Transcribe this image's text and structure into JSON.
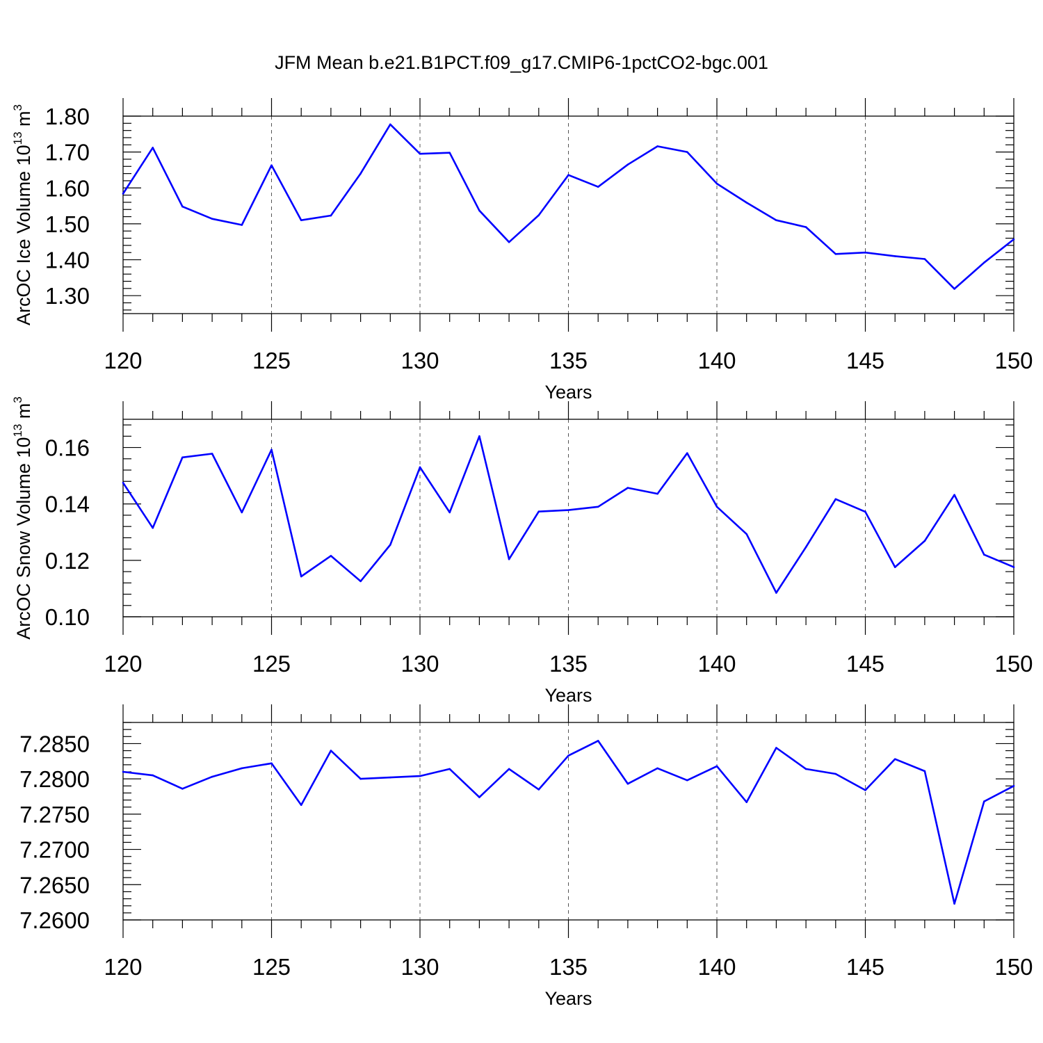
{
  "title": "JFM Mean b.e21.B1PCT.f09_g17.CMIP6-1pctCO2-bgc.001",
  "colors": {
    "line": "#0000ff",
    "axis": "#000000",
    "grid": "#555555"
  },
  "chart_data": [
    {
      "type": "line",
      "xlabel": "Years",
      "ylabel": {
        "text": "ArcOC Ice Volume 10",
        "sup1": "13",
        "mid": " m",
        "sup2": "3"
      },
      "xlim": [
        120,
        150
      ],
      "ylim": [
        1.25,
        1.8
      ],
      "grid": "vertical dashed at major x ticks",
      "x_ticks": [
        "120",
        "125",
        "130",
        "135",
        "140",
        "145",
        "150"
      ],
      "y_ticks": [
        {
          "value": 1.3,
          "label": "1.30"
        },
        {
          "value": 1.4,
          "label": "1.40"
        },
        {
          "value": 1.5,
          "label": "1.50"
        },
        {
          "value": 1.6,
          "label": "1.60"
        },
        {
          "value": 1.7,
          "label": "1.70"
        },
        {
          "value": 1.8,
          "label": "1.80"
        }
      ],
      "x": [
        120,
        121,
        122,
        123,
        124,
        125,
        126,
        127,
        128,
        129,
        130,
        131,
        132,
        133,
        134,
        135,
        136,
        137,
        138,
        139,
        140,
        141,
        142,
        143,
        144,
        145,
        146,
        147,
        148,
        149,
        150
      ],
      "y": [
        1.584,
        1.712,
        1.548,
        1.514,
        1.497,
        1.663,
        1.51,
        1.523,
        1.64,
        1.777,
        1.695,
        1.698,
        1.537,
        1.449,
        1.524,
        1.636,
        1.603,
        1.665,
        1.716,
        1.7,
        1.612,
        1.559,
        1.51,
        1.491,
        1.416,
        1.42,
        1.41,
        1.402,
        1.319,
        1.392,
        1.457
      ]
    },
    {
      "type": "line",
      "xlabel": "Years",
      "ylabel": {
        "text": "ArcOC Snow Volume 10",
        "sup1": "13",
        "mid": " m",
        "sup2": "3"
      },
      "xlim": [
        120,
        150
      ],
      "ylim": [
        0.1,
        0.17
      ],
      "grid": "vertical dashed at major x ticks",
      "x_ticks": [
        "120",
        "125",
        "130",
        "135",
        "140",
        "145",
        "150"
      ],
      "y_ticks": [
        {
          "value": 0.1,
          "label": "0.10"
        },
        {
          "value": 0.12,
          "label": "0.12"
        },
        {
          "value": 0.14,
          "label": "0.14"
        },
        {
          "value": 0.16,
          "label": "0.16"
        }
      ],
      "x": [
        120,
        121,
        122,
        123,
        124,
        125,
        126,
        127,
        128,
        129,
        130,
        131,
        132,
        133,
        134,
        135,
        136,
        137,
        138,
        139,
        140,
        141,
        142,
        143,
        144,
        145,
        146,
        147,
        148,
        149,
        150
      ],
      "y": [
        0.1475,
        0.1315,
        0.1565,
        0.1578,
        0.137,
        0.1592,
        0.1143,
        0.1216,
        0.1126,
        0.1255,
        0.153,
        0.137,
        0.164,
        0.1204,
        0.1373,
        0.1378,
        0.139,
        0.1457,
        0.1436,
        0.158,
        0.139,
        0.1293,
        0.1085,
        0.1247,
        0.1417,
        0.1372,
        0.1176,
        0.1269,
        0.1432,
        0.122,
        0.1176
      ]
    },
    {
      "type": "line",
      "xlabel": "Years",
      "ylabel": null,
      "xlim": [
        120,
        150
      ],
      "ylim": [
        7.26,
        7.288
      ],
      "grid": "vertical dashed at major x ticks",
      "x_ticks": [
        "120",
        "125",
        "130",
        "135",
        "140",
        "145",
        "150"
      ],
      "y_ticks": [
        {
          "value": 7.26,
          "label": "7.2600"
        },
        {
          "value": 7.265,
          "label": "7.2650"
        },
        {
          "value": 7.27,
          "label": "7.2700"
        },
        {
          "value": 7.275,
          "label": "7.2750"
        },
        {
          "value": 7.28,
          "label": "7.2800"
        },
        {
          "value": 7.285,
          "label": "7.2850"
        }
      ],
      "x": [
        120,
        121,
        122,
        123,
        124,
        125,
        126,
        127,
        128,
        129,
        130,
        131,
        132,
        133,
        134,
        135,
        136,
        137,
        138,
        139,
        140,
        141,
        142,
        143,
        144,
        145,
        146,
        147,
        148,
        149,
        150
      ],
      "y": [
        7.281,
        7.2805,
        7.2786,
        7.2803,
        7.2815,
        7.2822,
        7.2763,
        7.284,
        7.28,
        7.2802,
        7.2804,
        7.2814,
        7.2774,
        7.2814,
        7.2785,
        7.2833,
        7.2854,
        7.2793,
        7.2815,
        7.2798,
        7.2818,
        7.2767,
        7.2844,
        7.2814,
        7.2807,
        7.2784,
        7.2828,
        7.2811,
        7.2623,
        7.2768,
        7.279
      ]
    }
  ]
}
